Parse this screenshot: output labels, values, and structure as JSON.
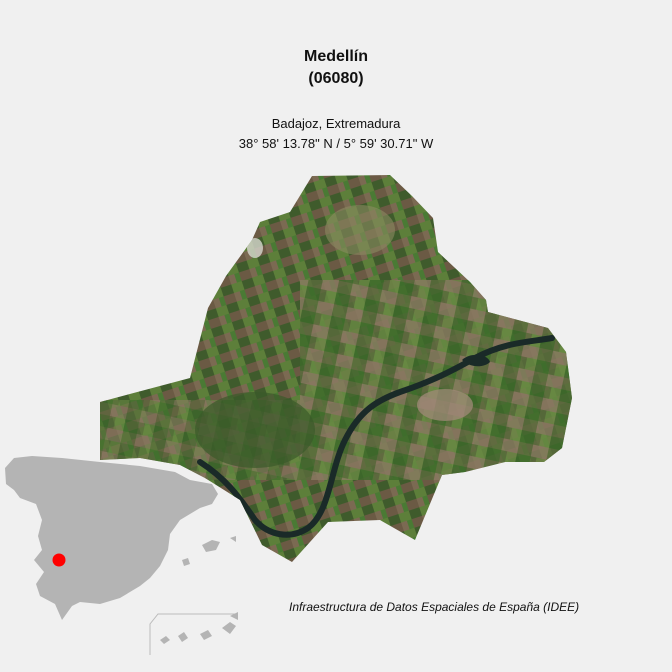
{
  "map": {
    "municipality_name": "Medellín",
    "municipality_code": "(06080)",
    "province_region": "Badajoz, Extremadura",
    "coordinates": "38° 58' 13.78\" N / 5° 59' 30.71\" W",
    "source_credit": "Infraestructura de Datos Espaciales de España (IDEE)"
  },
  "inset": {
    "country": "Spain",
    "marker_color": "#ff0000",
    "land_color": "#b4b4b4"
  },
  "colors": {
    "background": "#f0f0f0",
    "river": "#1a2a28"
  }
}
